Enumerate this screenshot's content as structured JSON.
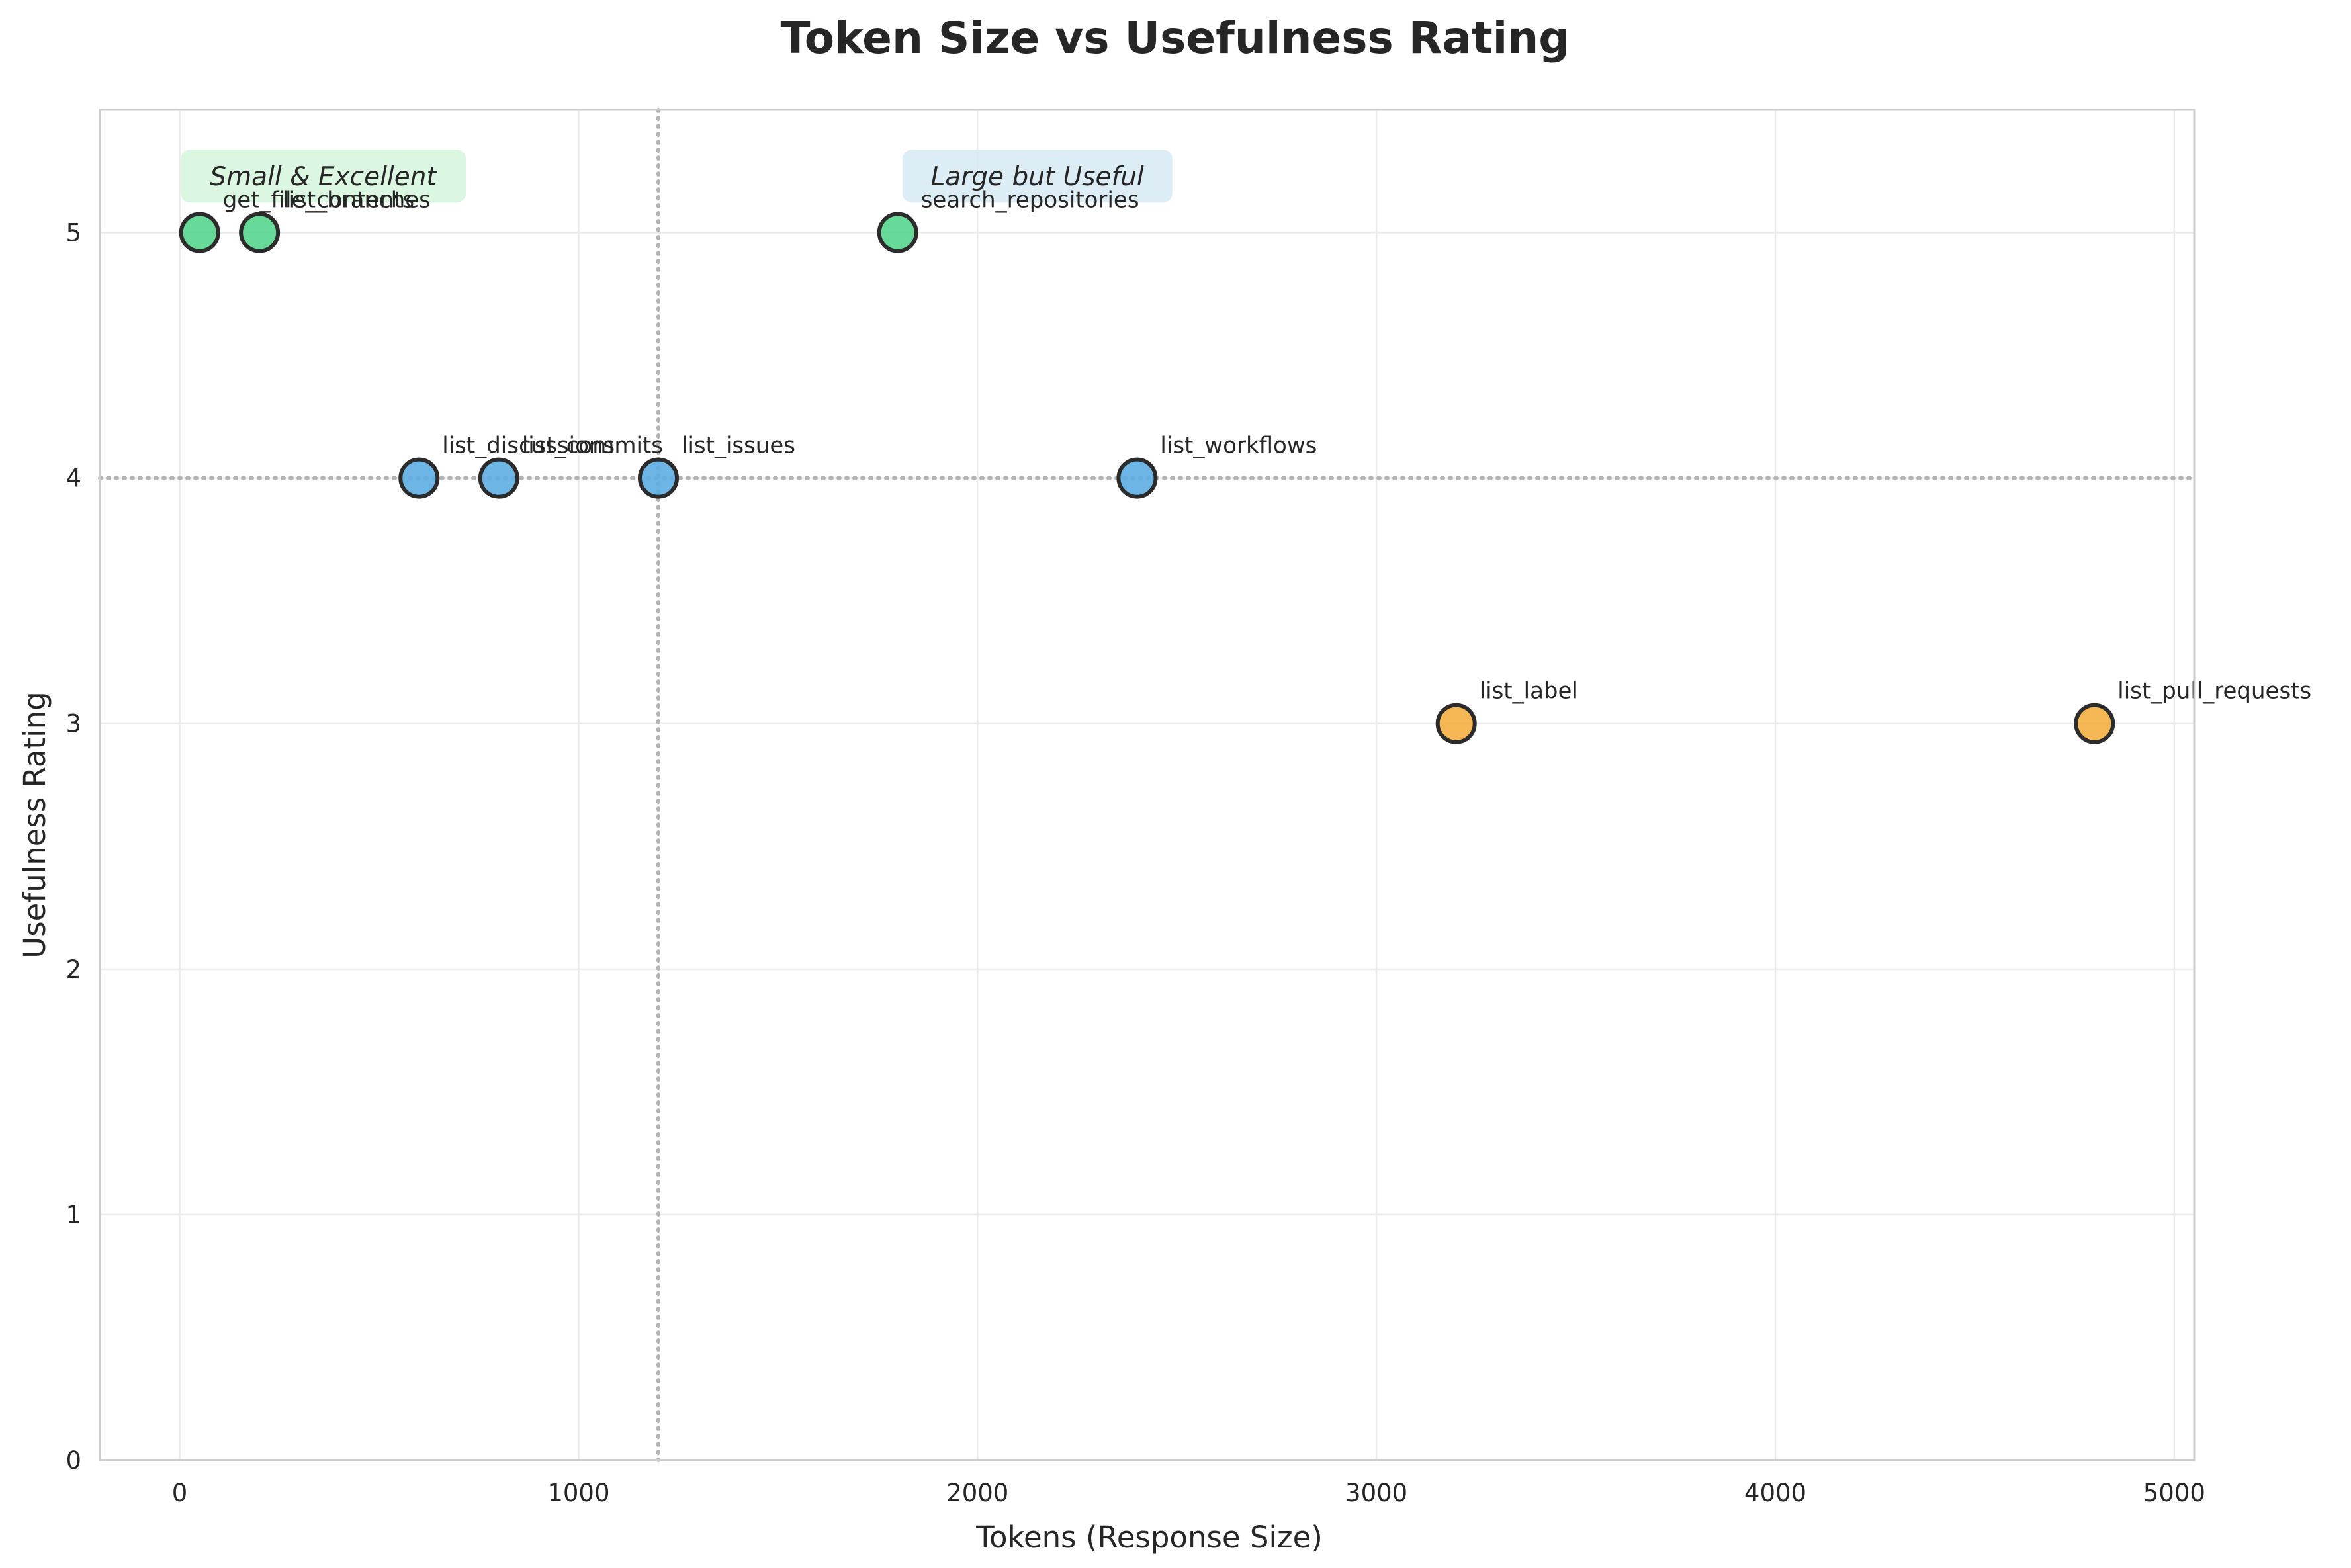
{
  "chart_data": {
    "type": "scatter",
    "title": "Token Size vs Usefulness Rating",
    "xlabel": "Tokens (Response Size)",
    "ylabel": "Usefulness Rating",
    "xlim": [
      -200,
      5050
    ],
    "ylim": [
      0,
      5.5
    ],
    "xticks": [
      0,
      1000,
      2000,
      3000,
      4000,
      5000
    ],
    "yticks": [
      0,
      1,
      2,
      3,
      4,
      5
    ],
    "grid": true,
    "reference_lines": {
      "x": 1200,
      "y": 4
    },
    "colors": {
      "excellent": "#58d68d",
      "good": "#5dade2",
      "fair": "#f5b041"
    },
    "points": [
      {
        "label": "get_file_contents",
        "x": 50,
        "y": 5,
        "color": "#58d68d"
      },
      {
        "label": "list_branches",
        "x": 200,
        "y": 5,
        "color": "#58d68d"
      },
      {
        "label": "search_repositories",
        "x": 1800,
        "y": 5,
        "color": "#58d68d"
      },
      {
        "label": "list_discussions",
        "x": 600,
        "y": 4,
        "color": "#5dade2"
      },
      {
        "label": "list_commits",
        "x": 800,
        "y": 4,
        "color": "#5dade2"
      },
      {
        "label": "list_issues",
        "x": 1200,
        "y": 4,
        "color": "#5dade2"
      },
      {
        "label": "list_workflows",
        "x": 2400,
        "y": 4,
        "color": "#5dade2"
      },
      {
        "label": "list_label",
        "x": 3200,
        "y": 3,
        "color": "#f5b041"
      },
      {
        "label": "list_pull_requests",
        "x": 4800,
        "y": 3,
        "color": "#f5b041"
      }
    ],
    "annotations": [
      {
        "text": "Small & Excellent",
        "x": 360,
        "y": 5.23,
        "bg": "#d5f5dc"
      },
      {
        "text": "Large but Useful",
        "x": 2150,
        "y": 5.23,
        "bg": "#d6eaf3"
      }
    ]
  }
}
